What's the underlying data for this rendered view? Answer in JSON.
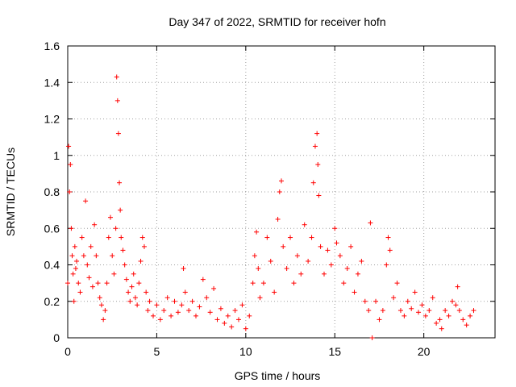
{
  "chart_data": {
    "type": "scatter",
    "title": "Day 347 of 2022, SRMTID for receiver hofn",
    "xlabel": "GPS time / hours",
    "ylabel": "SRMTID / TECUs",
    "xlim": [
      0,
      24
    ],
    "ylim": [
      0,
      1.6
    ],
    "xticks": [
      0,
      5,
      10,
      15,
      20
    ],
    "xtick_labels": [
      "0",
      "5",
      "10",
      "15",
      "20"
    ],
    "yticks": [
      0,
      0.2,
      0.4,
      0.6,
      0.8,
      1.0,
      1.2,
      1.4,
      1.6
    ],
    "ytick_labels": [
      "0",
      "0.2",
      "0.4",
      "0.6",
      "0.8",
      "1",
      "1.2",
      "1.4",
      "1.6"
    ],
    "grid": true,
    "marker": "+",
    "series": [
      {
        "name": "SRMTID",
        "color": "#ff0000",
        "points": [
          [
            0.0,
            0.3
          ],
          [
            0.05,
            1.05
          ],
          [
            0.1,
            0.8
          ],
          [
            0.15,
            0.95
          ],
          [
            0.2,
            0.6
          ],
          [
            0.25,
            0.45
          ],
          [
            0.3,
            0.35
          ],
          [
            0.35,
            0.2
          ],
          [
            0.4,
            0.5
          ],
          [
            0.45,
            0.38
          ],
          [
            0.5,
            0.42
          ],
          [
            0.6,
            0.3
          ],
          [
            0.7,
            0.25
          ],
          [
            0.8,
            0.55
          ],
          [
            0.9,
            0.45
          ],
          [
            1.0,
            0.75
          ],
          [
            1.1,
            0.4
          ],
          [
            1.2,
            0.33
          ],
          [
            1.3,
            0.5
          ],
          [
            1.4,
            0.28
          ],
          [
            1.5,
            0.62
          ],
          [
            1.6,
            0.45
          ],
          [
            1.7,
            0.3
          ],
          [
            1.8,
            0.22
          ],
          [
            1.9,
            0.18
          ],
          [
            2.0,
            0.1
          ],
          [
            2.1,
            0.15
          ],
          [
            2.2,
            0.3
          ],
          [
            2.3,
            0.55
          ],
          [
            2.4,
            0.66
          ],
          [
            2.5,
            0.45
          ],
          [
            2.6,
            0.35
          ],
          [
            2.7,
            0.6
          ],
          [
            2.75,
            1.43
          ],
          [
            2.8,
            1.3
          ],
          [
            2.85,
            1.12
          ],
          [
            2.9,
            0.85
          ],
          [
            2.95,
            0.7
          ],
          [
            3.0,
            0.55
          ],
          [
            3.1,
            0.48
          ],
          [
            3.2,
            0.4
          ],
          [
            3.3,
            0.32
          ],
          [
            3.4,
            0.25
          ],
          [
            3.5,
            0.2
          ],
          [
            3.6,
            0.28
          ],
          [
            3.7,
            0.35
          ],
          [
            3.8,
            0.22
          ],
          [
            3.9,
            0.18
          ],
          [
            4.0,
            0.3
          ],
          [
            4.1,
            0.42
          ],
          [
            4.2,
            0.55
          ],
          [
            4.3,
            0.5
          ],
          [
            4.4,
            0.25
          ],
          [
            4.5,
            0.15
          ],
          [
            4.6,
            0.2
          ],
          [
            4.8,
            0.12
          ],
          [
            5.0,
            0.18
          ],
          [
            5.2,
            0.1
          ],
          [
            5.4,
            0.15
          ],
          [
            5.6,
            0.22
          ],
          [
            5.8,
            0.12
          ],
          [
            6.0,
            0.2
          ],
          [
            6.2,
            0.14
          ],
          [
            6.4,
            0.18
          ],
          [
            6.5,
            0.38
          ],
          [
            6.6,
            0.25
          ],
          [
            6.8,
            0.15
          ],
          [
            7.0,
            0.2
          ],
          [
            7.2,
            0.12
          ],
          [
            7.4,
            0.17
          ],
          [
            7.6,
            0.32
          ],
          [
            7.8,
            0.22
          ],
          [
            8.0,
            0.14
          ],
          [
            8.2,
            0.27
          ],
          [
            8.4,
            0.1
          ],
          [
            8.6,
            0.16
          ],
          [
            8.8,
            0.08
          ],
          [
            9.0,
            0.12
          ],
          [
            9.2,
            0.06
          ],
          [
            9.4,
            0.15
          ],
          [
            9.6,
            0.1
          ],
          [
            9.8,
            0.18
          ],
          [
            10.0,
            0.05
          ],
          [
            10.2,
            0.12
          ],
          [
            10.4,
            0.3
          ],
          [
            10.5,
            0.45
          ],
          [
            10.6,
            0.58
          ],
          [
            10.7,
            0.38
          ],
          [
            10.8,
            0.22
          ],
          [
            11.0,
            0.3
          ],
          [
            11.2,
            0.55
          ],
          [
            11.4,
            0.42
          ],
          [
            11.6,
            0.25
          ],
          [
            11.8,
            0.65
          ],
          [
            11.9,
            0.8
          ],
          [
            12.0,
            0.86
          ],
          [
            12.1,
            0.5
          ],
          [
            12.3,
            0.38
          ],
          [
            12.5,
            0.55
          ],
          [
            12.7,
            0.3
          ],
          [
            12.9,
            0.45
          ],
          [
            13.1,
            0.35
          ],
          [
            13.3,
            0.62
          ],
          [
            13.5,
            0.42
          ],
          [
            13.7,
            0.55
          ],
          [
            13.8,
            0.85
          ],
          [
            13.9,
            1.05
          ],
          [
            14.0,
            1.12
          ],
          [
            14.05,
            0.95
          ],
          [
            14.1,
            0.78
          ],
          [
            14.2,
            0.5
          ],
          [
            14.4,
            0.35
          ],
          [
            14.6,
            0.48
          ],
          [
            14.8,
            0.4
          ],
          [
            15.0,
            0.6
          ],
          [
            15.1,
            0.52
          ],
          [
            15.3,
            0.45
          ],
          [
            15.5,
            0.3
          ],
          [
            15.7,
            0.38
          ],
          [
            15.9,
            0.5
          ],
          [
            16.1,
            0.25
          ],
          [
            16.3,
            0.35
          ],
          [
            16.5,
            0.42
          ],
          [
            16.7,
            0.2
          ],
          [
            16.9,
            0.15
          ],
          [
            17.0,
            0.63
          ],
          [
            17.1,
            0.0
          ],
          [
            17.3,
            0.2
          ],
          [
            17.5,
            0.1
          ],
          [
            17.7,
            0.15
          ],
          [
            17.9,
            0.4
          ],
          [
            18.0,
            0.55
          ],
          [
            18.1,
            0.48
          ],
          [
            18.3,
            0.22
          ],
          [
            18.5,
            0.3
          ],
          [
            18.7,
            0.15
          ],
          [
            18.9,
            0.12
          ],
          [
            19.1,
            0.2
          ],
          [
            19.3,
            0.16
          ],
          [
            19.5,
            0.25
          ],
          [
            19.7,
            0.14
          ],
          [
            19.9,
            0.18
          ],
          [
            20.1,
            0.12
          ],
          [
            20.3,
            0.15
          ],
          [
            20.5,
            0.22
          ],
          [
            20.7,
            0.08
          ],
          [
            20.9,
            0.1
          ],
          [
            21.0,
            0.05
          ],
          [
            21.2,
            0.15
          ],
          [
            21.4,
            0.12
          ],
          [
            21.6,
            0.2
          ],
          [
            21.8,
            0.18
          ],
          [
            21.9,
            0.28
          ],
          [
            22.0,
            0.15
          ],
          [
            22.2,
            0.1
          ],
          [
            22.4,
            0.07
          ],
          [
            22.6,
            0.12
          ],
          [
            22.8,
            0.15
          ]
        ]
      }
    ]
  }
}
